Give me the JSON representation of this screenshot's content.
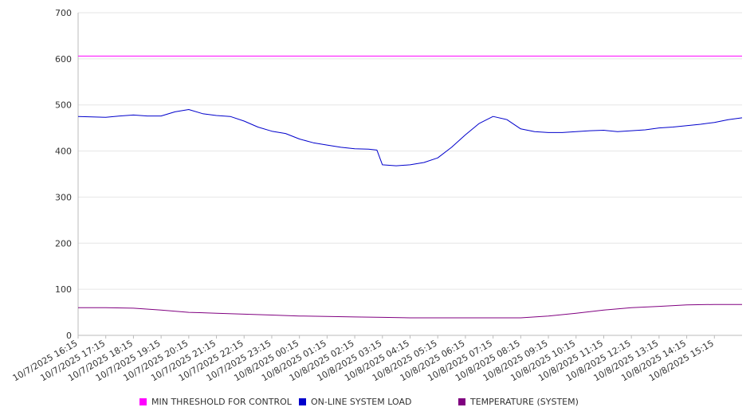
{
  "chart_data": {
    "type": "line",
    "title": "",
    "xlabel": "",
    "ylabel": "",
    "ylim": [
      0,
      700
    ],
    "y_ticks": [
      "0",
      "100",
      "200",
      "300",
      "400",
      "500",
      "600",
      "700"
    ],
    "grid": true,
    "legend_position": "bottom",
    "categories": [
      "10/7/2025 16:15",
      "10/7/2025 17:15",
      "10/7/2025 18:15",
      "10/7/2025 19:15",
      "10/7/2025 20:15",
      "10/7/2025 21:15",
      "10/7/2025 22:15",
      "10/7/2025 23:15",
      "10/8/2025 00:15",
      "10/8/2025 01:15",
      "10/8/2025 02:15",
      "10/8/2025 03:15",
      "10/8/2025 04:15",
      "10/8/2025 05:15",
      "10/8/2025 06:15",
      "10/8/2025 07:15",
      "10/8/2025 08:15",
      "10/8/2025 09:15",
      "10/8/2025 10:15",
      "10/8/2025 11:15",
      "10/8/2025 12:15",
      "10/8/2025 13:15",
      "10/8/2025 14:15",
      "10/8/2025 15:15"
    ],
    "series": [
      {
        "name": "MIN THRESHOLD FOR CONTROL",
        "color": "#ff00ff",
        "x": [
          0,
          24
        ],
        "values": [
          606,
          606
        ]
      },
      {
        "name": "ON-LINE SYSTEM LOAD",
        "color": "#0000cc",
        "x": [
          0,
          0.5,
          1,
          1.5,
          2,
          2.5,
          3,
          3.5,
          4,
          4.5,
          5,
          5.5,
          6,
          6.5,
          7,
          7.5,
          8,
          8.5,
          9,
          9.5,
          10,
          10.5,
          10.8,
          11,
          11.5,
          12,
          12.5,
          13,
          13.5,
          14,
          14.5,
          15,
          15.5,
          16,
          16.5,
          17,
          17.5,
          18,
          18.5,
          19,
          19.5,
          20,
          20.5,
          21,
          21.5,
          22,
          22.5,
          23,
          23.5,
          24
        ],
        "values": [
          475,
          474,
          473,
          476,
          478,
          476,
          476,
          485,
          490,
          481,
          477,
          475,
          465,
          452,
          443,
          438,
          426,
          418,
          413,
          408,
          405,
          404,
          402,
          370,
          368,
          370,
          375,
          385,
          408,
          435,
          460,
          475,
          468,
          448,
          442,
          440,
          440,
          442,
          444,
          445,
          442,
          444,
          446,
          450,
          452,
          455,
          458,
          462,
          468,
          472
        ]
      },
      {
        "name": "TEMPERATURE (SYSTEM)",
        "color": "#800080",
        "x": [
          0,
          1,
          2,
          3,
          4,
          5,
          6,
          7,
          8,
          9,
          10,
          11,
          12,
          13,
          14,
          15,
          16,
          17,
          18,
          19,
          20,
          21,
          22,
          23,
          24
        ],
        "values": [
          60,
          60,
          59,
          55,
          50,
          48,
          46,
          44,
          42,
          41,
          40,
          39,
          38,
          38,
          38,
          38,
          38,
          42,
          48,
          55,
          60,
          63,
          66,
          67,
          67
        ]
      }
    ]
  }
}
